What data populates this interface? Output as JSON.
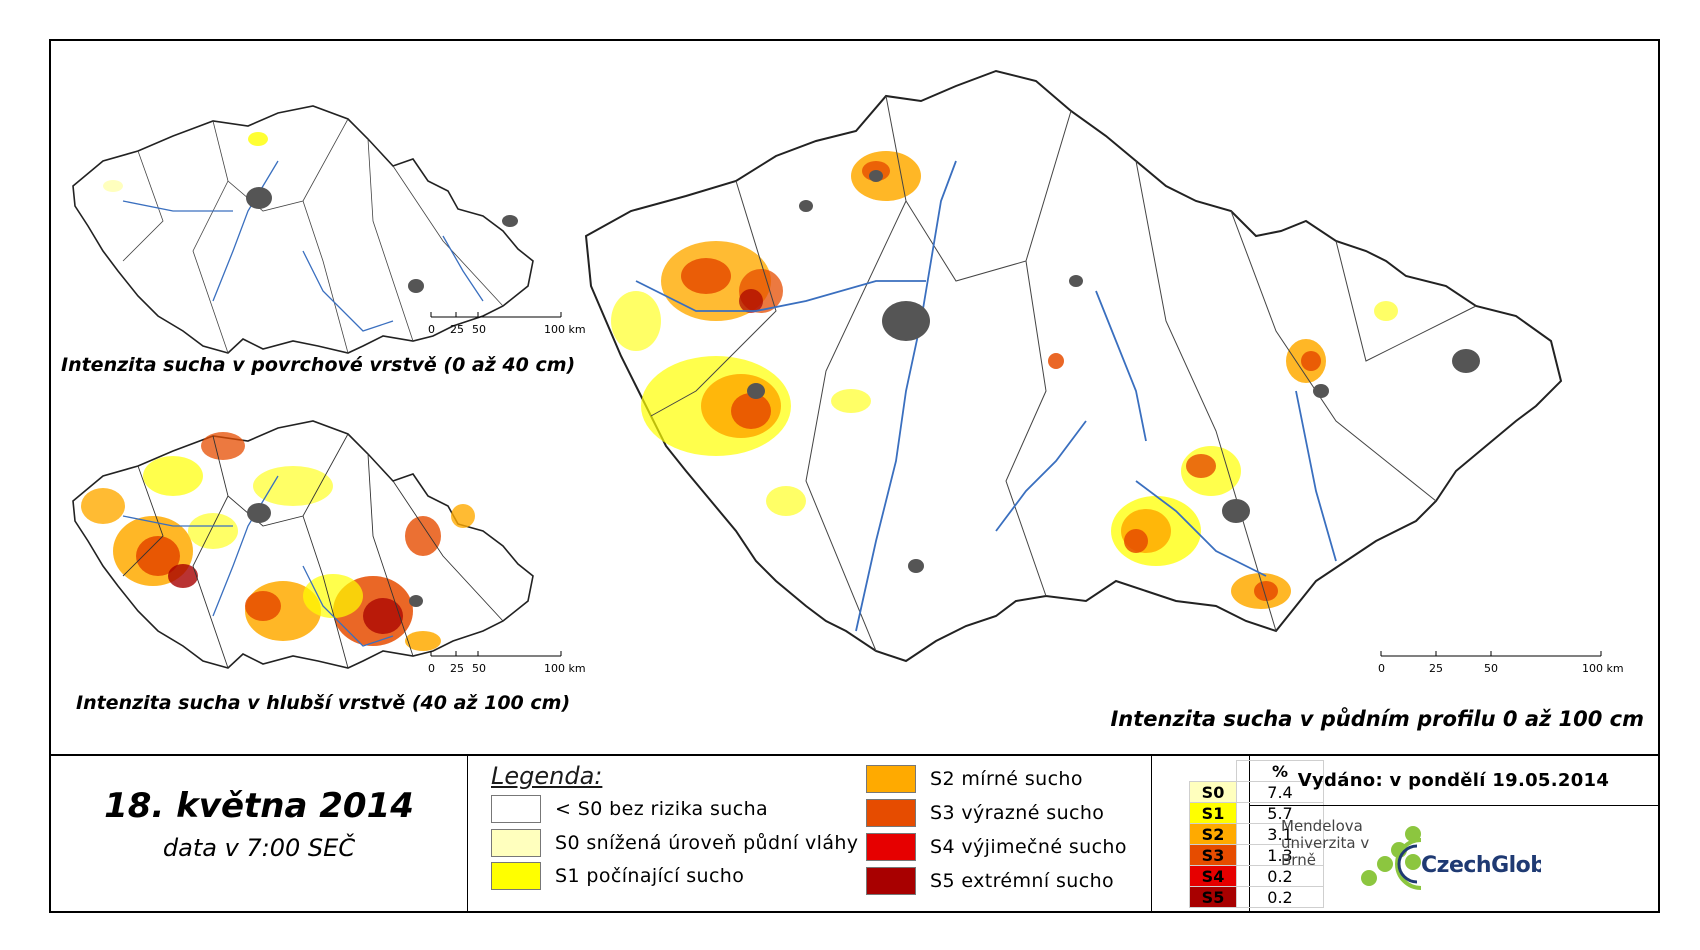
{
  "maps": [
    {
      "caption": "Intenzita sucha v povrchové vrstvě (0 až 40 cm)"
    },
    {
      "caption": "Intenzita sucha v hlubší vrstvě (40 až 100 cm)"
    },
    {
      "caption": "Intenzita sucha v půdním profilu 0 až 100 cm"
    }
  ],
  "scale": {
    "ticks": [
      "0",
      "25",
      "50",
      "100 km"
    ]
  },
  "date": {
    "main": "18. května 2014",
    "sub": "data v 7:00 SEČ"
  },
  "legend": {
    "title": "Legenda:",
    "items": [
      {
        "label": "< S0 bez rizika sucha",
        "color": "#ffffff"
      },
      {
        "label": "S0 snížená úroveň půdní vláhy",
        "color": "#ffffbe"
      },
      {
        "label": "S1 počínající sucho",
        "color": "#ffff00"
      },
      {
        "label": "S2 mírné sucho",
        "color": "#ffaa00"
      },
      {
        "label": "S3 výrazné sucho",
        "color": "#e64c00"
      },
      {
        "label": "S4 výjimečné sucho",
        "color": "#e60000"
      },
      {
        "label": "S5 extrémní sucho",
        "color": "#a80000"
      }
    ]
  },
  "percent_table": {
    "header": "%",
    "rows": [
      {
        "code": "S0",
        "value": "7.4",
        "color": "#ffffbe"
      },
      {
        "code": "S1",
        "value": "5.7",
        "color": "#ffff00"
      },
      {
        "code": "S2",
        "value": "3.1",
        "color": "#ffaa00"
      },
      {
        "code": "S3",
        "value": "1.3",
        "color": "#e64c00"
      },
      {
        "code": "S4",
        "value": "0.2",
        "color": "#e60000"
      },
      {
        "code": "S5",
        "value": "0.2",
        "color": "#a80000"
      }
    ]
  },
  "issued": "Vydáno: v pondělí 19.05.2014",
  "logos": {
    "university": "Mendelova univerzita v Brně",
    "czechglobe": "CzechGlobe"
  },
  "colors": {
    "river": "#3a6fbf",
    "city": "#555555",
    "border": "#222222",
    "logo_green": "#8cc63f",
    "logo_blue": "#1f3a73"
  }
}
